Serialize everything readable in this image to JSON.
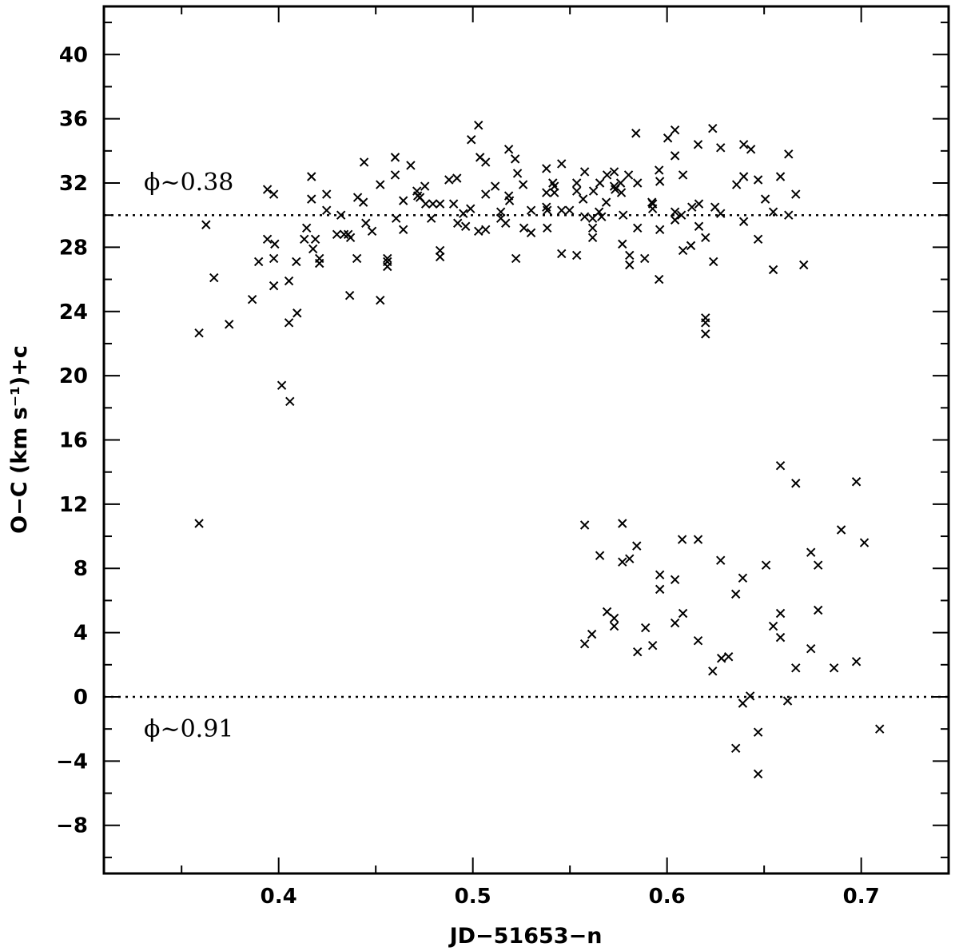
{
  "chart_data": {
    "type": "scatter",
    "xlabel": "JD−51653−n",
    "ylabel": "O−C (km s⁻¹)+c",
    "xlim": [
      0.31,
      0.745
    ],
    "ylim": [
      -11,
      43
    ],
    "x_ticks": [
      0.4,
      0.5,
      0.6,
      0.7
    ],
    "x_tick_labels": [
      "0.4",
      "0.5",
      "0.6",
      "0.7"
    ],
    "y_ticks": [
      -8,
      -4,
      0,
      4,
      8,
      12,
      16,
      20,
      24,
      28,
      32,
      36,
      40
    ],
    "y_tick_labels": [
      "−8",
      "−4",
      "0",
      "4",
      "8",
      "12",
      "16",
      "20",
      "24",
      "28",
      "32",
      "36",
      "40"
    ],
    "grid": false,
    "marker": "x",
    "color": "#000000",
    "reference_lines": [
      {
        "y": 30,
        "style": "dotted",
        "label": "ϕ~0.38"
      },
      {
        "y": 0,
        "style": "dotted",
        "label": "ϕ~0.91"
      }
    ],
    "points": [
      [
        0.359,
        22.66
      ],
      [
        0.3626,
        29.4
      ],
      [
        0.3667,
        26.1
      ],
      [
        0.3745,
        23.2
      ],
      [
        0.3864,
        24.75
      ],
      [
        0.3897,
        27.1
      ],
      [
        0.3942,
        31.6
      ],
      [
        0.3942,
        28.5
      ],
      [
        0.3975,
        31.3
      ],
      [
        0.3975,
        25.6
      ],
      [
        0.3975,
        27.3
      ],
      [
        0.398,
        28.2
      ],
      [
        0.4016,
        19.4
      ],
      [
        0.4053,
        25.9
      ],
      [
        0.4053,
        23.3
      ],
      [
        0.4058,
        18.4
      ],
      [
        0.4095,
        23.9
      ],
      [
        0.4091,
        27.1
      ],
      [
        0.4132,
        28.5
      ],
      [
        0.4144,
        29.2
      ],
      [
        0.4169,
        32.4
      ],
      [
        0.4169,
        31.0
      ],
      [
        0.4177,
        27.9
      ],
      [
        0.4189,
        28.5
      ],
      [
        0.421,
        27.3
      ],
      [
        0.421,
        27.0
      ],
      [
        0.4247,
        31.3
      ],
      [
        0.4247,
        30.3
      ],
      [
        0.43,
        28.8
      ],
      [
        0.4321,
        30.0
      ],
      [
        0.4337,
        28.8
      ],
      [
        0.4358,
        28.8
      ],
      [
        0.437,
        28.6
      ],
      [
        0.4366,
        25.0
      ],
      [
        0.4407,
        31.1
      ],
      [
        0.4403,
        27.3
      ],
      [
        0.4436,
        30.8
      ],
      [
        0.444,
        33.3
      ],
      [
        0.4449,
        29.5
      ],
      [
        0.4481,
        29.0
      ],
      [
        0.4523,
        31.9
      ],
      [
        0.4523,
        24.7
      ],
      [
        0.456,
        27.3
      ],
      [
        0.456,
        27.1
      ],
      [
        0.456,
        26.8
      ],
      [
        0.46,
        33.6
      ],
      [
        0.46,
        32.5
      ],
      [
        0.4605,
        29.8
      ],
      [
        0.4642,
        29.1
      ],
      [
        0.4642,
        30.9
      ],
      [
        0.468,
        33.1
      ],
      [
        0.4712,
        31.5
      ],
      [
        0.4716,
        31.2
      ],
      [
        0.4728,
        31.1
      ],
      [
        0.4753,
        31.8
      ],
      [
        0.4757,
        30.7
      ],
      [
        0.4786,
        29.8
      ],
      [
        0.4794,
        30.7
      ],
      [
        0.4831,
        27.8
      ],
      [
        0.4831,
        27.4
      ],
      [
        0.4831,
        30.7
      ],
      [
        0.4877,
        32.2
      ],
      [
        0.4901,
        30.7
      ],
      [
        0.4918,
        32.3
      ],
      [
        0.4922,
        29.5
      ],
      [
        0.4951,
        30.1
      ],
      [
        0.4963,
        29.3
      ],
      [
        0.4988,
        30.4
      ],
      [
        0.4992,
        34.7
      ],
      [
        0.5029,
        35.6
      ],
      [
        0.5037,
        33.6
      ],
      [
        0.5029,
        29.0
      ],
      [
        0.5066,
        31.3
      ],
      [
        0.5066,
        33.3
      ],
      [
        0.5066,
        29.1
      ],
      [
        0.5115,
        31.8
      ],
      [
        0.5144,
        29.8
      ],
      [
        0.5144,
        30.2
      ],
      [
        0.5169,
        29.5
      ],
      [
        0.5185,
        34.1
      ],
      [
        0.5185,
        31.2
      ],
      [
        0.5189,
        30.9
      ],
      [
        0.5218,
        33.5
      ],
      [
        0.5222,
        27.3
      ],
      [
        0.523,
        32.6
      ],
      [
        0.5259,
        31.9
      ],
      [
        0.5263,
        29.2
      ],
      [
        0.53,
        28.9
      ],
      [
        0.53,
        30.3
      ],
      [
        0.5379,
        32.9
      ],
      [
        0.5379,
        31.4
      ],
      [
        0.5379,
        30.5
      ],
      [
        0.5383,
        30.3
      ],
      [
        0.5383,
        29.2
      ],
      [
        0.5412,
        32.0
      ],
      [
        0.542,
        31.8
      ],
      [
        0.542,
        31.4
      ],
      [
        0.5457,
        30.3
      ],
      [
        0.5457,
        33.2
      ],
      [
        0.5457,
        27.6
      ],
      [
        0.5498,
        30.3
      ],
      [
        0.5535,
        32.0
      ],
      [
        0.5535,
        31.5
      ],
      [
        0.5535,
        27.5
      ],
      [
        0.5568,
        31.0
      ],
      [
        0.5576,
        32.7
      ],
      [
        0.5576,
        29.9
      ],
      [
        0.5617,
        29.8
      ],
      [
        0.5617,
        29.2
      ],
      [
        0.5617,
        28.6
      ],
      [
        0.5621,
        31.5
      ],
      [
        0.565,
        30.2
      ],
      [
        0.5654,
        32.0
      ],
      [
        0.5663,
        29.9
      ],
      [
        0.5687,
        30.8
      ],
      [
        0.5691,
        32.5
      ],
      [
        0.5728,
        32.7
      ],
      [
        0.5728,
        31.8
      ],
      [
        0.5733,
        31.6
      ],
      [
        0.5761,
        32.0
      ],
      [
        0.5765,
        31.4
      ],
      [
        0.577,
        28.2
      ],
      [
        0.5774,
        30.0
      ],
      [
        0.5802,
        32.5
      ],
      [
        0.5807,
        27.5
      ],
      [
        0.5807,
        26.9
      ],
      [
        0.584,
        35.1
      ],
      [
        0.5848,
        32.0
      ],
      [
        0.5848,
        29.2
      ],
      [
        0.5885,
        27.3
      ],
      [
        0.5922,
        30.8
      ],
      [
        0.5926,
        30.7
      ],
      [
        0.5926,
        30.4
      ],
      [
        0.5959,
        32.8
      ],
      [
        0.5963,
        32.1
      ],
      [
        0.5963,
        29.1
      ],
      [
        0.5959,
        26.0
      ],
      [
        0.6004,
        34.8
      ],
      [
        0.6041,
        35.3
      ],
      [
        0.6041,
        33.7
      ],
      [
        0.6041,
        30.2
      ],
      [
        0.6041,
        29.7
      ],
      [
        0.6074,
        30.0
      ],
      [
        0.6082,
        32.5
      ],
      [
        0.6082,
        27.8
      ],
      [
        0.6123,
        28.1
      ],
      [
        0.6128,
        30.5
      ],
      [
        0.616,
        34.4
      ],
      [
        0.6164,
        30.7
      ],
      [
        0.6164,
        29.3
      ],
      [
        0.6198,
        28.6
      ],
      [
        0.6198,
        23.6
      ],
      [
        0.6198,
        23.3
      ],
      [
        0.6198,
        22.6
      ],
      [
        0.6235,
        35.4
      ],
      [
        0.6239,
        27.1
      ],
      [
        0.6247,
        30.5
      ],
      [
        0.6276,
        34.2
      ],
      [
        0.6276,
        30.1
      ],
      [
        0.6358,
        31.9
      ],
      [
        0.6395,
        34.4
      ],
      [
        0.6395,
        32.4
      ],
      [
        0.6395,
        29.6
      ],
      [
        0.6432,
        34.1
      ],
      [
        0.6469,
        32.2
      ],
      [
        0.6469,
        28.5
      ],
      [
        0.6506,
        31.0
      ],
      [
        0.6547,
        30.2
      ],
      [
        0.6547,
        26.6
      ],
      [
        0.6584,
        32.4
      ],
      [
        0.6626,
        33.8
      ],
      [
        0.6626,
        30.0
      ],
      [
        0.6663,
        31.3
      ],
      [
        0.6704,
        26.9
      ],
      [
        0.359,
        10.8
      ],
      [
        0.5576,
        10.7
      ],
      [
        0.5576,
        3.3
      ],
      [
        0.5613,
        3.9
      ],
      [
        0.5654,
        8.8
      ],
      [
        0.5691,
        5.3
      ],
      [
        0.5728,
        4.9
      ],
      [
        0.5728,
        4.4
      ],
      [
        0.577,
        10.8
      ],
      [
        0.577,
        8.4
      ],
      [
        0.5807,
        8.6
      ],
      [
        0.5844,
        9.4
      ],
      [
        0.5848,
        2.8
      ],
      [
        0.5889,
        4.3
      ],
      [
        0.5926,
        3.2
      ],
      [
        0.5963,
        7.6
      ],
      [
        0.5963,
        6.7
      ],
      [
        0.6041,
        7.3
      ],
      [
        0.6041,
        4.6
      ],
      [
        0.6078,
        9.8
      ],
      [
        0.6082,
        5.2
      ],
      [
        0.616,
        9.8
      ],
      [
        0.616,
        3.5
      ],
      [
        0.6235,
        1.6
      ],
      [
        0.6276,
        8.5
      ],
      [
        0.628,
        2.4
      ],
      [
        0.6317,
        2.5
      ],
      [
        0.6354,
        6.4
      ],
      [
        0.6354,
        -3.2
      ],
      [
        0.639,
        7.4
      ],
      [
        0.639,
        -0.4
      ],
      [
        0.6428,
        0.05
      ],
      [
        0.6469,
        -2.2
      ],
      [
        0.6469,
        -4.8
      ],
      [
        0.651,
        8.2
      ],
      [
        0.6547,
        4.4
      ],
      [
        0.6584,
        14.4
      ],
      [
        0.6584,
        5.2
      ],
      [
        0.6584,
        3.7
      ],
      [
        0.6621,
        -0.25
      ],
      [
        0.6663,
        13.3
      ],
      [
        0.6663,
        1.8
      ],
      [
        0.6741,
        9.0
      ],
      [
        0.6741,
        3.0
      ],
      [
        0.6778,
        8.2
      ],
      [
        0.6778,
        5.4
      ],
      [
        0.686,
        1.8
      ],
      [
        0.6897,
        10.4
      ],
      [
        0.6975,
        13.4
      ],
      [
        0.6975,
        2.2
      ],
      [
        0.7016,
        9.6
      ],
      [
        0.7095,
        -2.0
      ]
    ]
  }
}
